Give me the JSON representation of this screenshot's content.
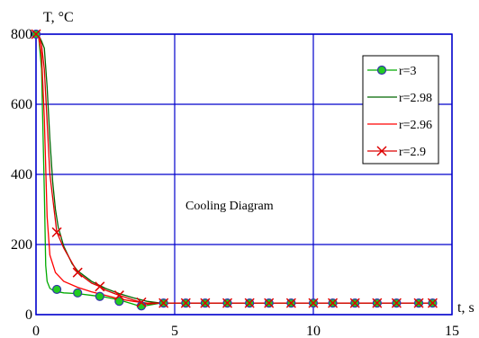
{
  "chart_data": {
    "type": "line",
    "title": "",
    "xlabel": "t, s",
    "ylabel": "T, °C",
    "xlim": [
      0,
      15
    ],
    "ylim": [
      0,
      800
    ],
    "xticks": [
      "0",
      "5",
      "10",
      "15"
    ],
    "yticks": [
      "0",
      "200",
      "400",
      "600",
      "800"
    ],
    "grid": true,
    "legend_position": "top-right",
    "annotation": "Cooling Diagram",
    "series": [
      {
        "name": "r=3",
        "color": "#00aa00",
        "marker": "circle",
        "x": [
          0,
          0.1,
          0.2,
          0.3,
          0.35,
          0.4,
          0.5,
          0.6,
          0.8,
          1.0,
          1.5,
          2.0,
          2.5,
          3.0,
          3.5,
          3.7,
          4.0,
          4.5,
          5,
          6,
          8,
          10,
          12,
          14.3
        ],
        "y": [
          800,
          790,
          700,
          350,
          140,
          95,
          75,
          70,
          65,
          62,
          60,
          55,
          50,
          42,
          30,
          25,
          26,
          33,
          33,
          33,
          33,
          33,
          33,
          33
        ],
        "marker_x": [
          0,
          0.75,
          1.5,
          2.3,
          3.0,
          3.8,
          4.6,
          5.4,
          6.1,
          6.9,
          7.7,
          8.4,
          9.2,
          10.0,
          10.7,
          11.5,
          12.3,
          13.0,
          13.8,
          14.3
        ],
        "marker_y": [
          800,
          72,
          62,
          52,
          38,
          25,
          33,
          33,
          33,
          33,
          33,
          33,
          33,
          33,
          33,
          33,
          33,
          33,
          33,
          33
        ]
      },
      {
        "name": "r=2.98",
        "color": "#006600",
        "marker": "none",
        "x": [
          0,
          0.1,
          0.2,
          0.3,
          0.4,
          0.5,
          0.6,
          0.7,
          0.8,
          1.0,
          1.3,
          1.5,
          2.0,
          2.5,
          3.0,
          3.5,
          4.0,
          4.5,
          5,
          6,
          8,
          10,
          12,
          14.3
        ],
        "y": [
          800,
          795,
          780,
          760,
          650,
          500,
          380,
          300,
          250,
          195,
          145,
          125,
          95,
          75,
          60,
          48,
          38,
          33,
          33,
          33,
          33,
          33,
          33,
          33
        ]
      },
      {
        "name": "r=2.96",
        "color": "#ff0000",
        "marker": "none",
        "x": [
          0,
          0.1,
          0.2,
          0.3,
          0.4,
          0.5,
          0.7,
          1.0,
          1.5,
          2.0,
          2.5,
          3.0,
          3.5,
          4.0,
          4.5,
          5,
          6,
          8,
          10,
          12,
          14.3
        ],
        "y": [
          800,
          790,
          740,
          560,
          280,
          170,
          120,
          95,
          78,
          65,
          55,
          45,
          38,
          33,
          33,
          33,
          33,
          33,
          33,
          33,
          33
        ]
      },
      {
        "name": "r=2.9",
        "color": "#dd0000",
        "marker": "x",
        "x": [
          0,
          0.1,
          0.2,
          0.3,
          0.4,
          0.5,
          0.75,
          1.0,
          1.5,
          2.0,
          2.3,
          2.5,
          3.0,
          3.5,
          3.8,
          4.0,
          4.5,
          5,
          6,
          8,
          10,
          12,
          14.3
        ],
        "y": [
          800,
          795,
          770,
          700,
          550,
          400,
          235,
          190,
          120,
          90,
          80,
          70,
          55,
          42,
          35,
          30,
          33,
          33,
          33,
          33,
          33,
          33,
          33
        ],
        "marker_x": [
          0,
          0.75,
          1.5,
          2.3,
          3.0,
          3.8,
          4.6,
          5.4,
          6.1,
          6.9,
          7.7,
          8.4,
          9.2,
          10.0,
          10.7,
          11.5,
          12.3,
          13.0,
          13.8,
          14.3
        ],
        "marker_y": [
          800,
          235,
          120,
          80,
          55,
          35,
          33,
          33,
          33,
          33,
          33,
          33,
          33,
          33,
          33,
          33,
          33,
          33,
          33,
          33
        ]
      }
    ]
  },
  "colors": {
    "axis_frame": "#0000cc",
    "grid": "#0000cc",
    "legend_border": "#000000",
    "background": "#ffffff"
  }
}
